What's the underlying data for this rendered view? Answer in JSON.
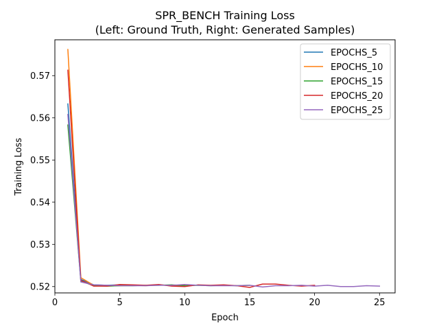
{
  "chart_data": {
    "type": "line",
    "title": "SPR_BENCH Training Loss",
    "subtitle": "(Left: Ground Truth, Right: Generated Samples)",
    "xlabel": "Epoch",
    "ylabel": "Training Loss",
    "xlim": [
      0.0,
      26.2
    ],
    "ylim": [
      0.5185,
      0.5785
    ],
    "xticks": [
      0,
      5,
      10,
      15,
      20,
      25
    ],
    "yticks": [
      0.52,
      0.53,
      0.54,
      0.55,
      0.56,
      0.57
    ],
    "grid": false,
    "legend_position": "top-right",
    "series": [
      {
        "name": "EPOCHS_5",
        "color": "#1f77b4",
        "x": [
          1,
          2,
          3,
          4,
          5
        ],
        "y": [
          0.5633,
          0.5217,
          0.5204,
          0.5203,
          0.5204
        ]
      },
      {
        "name": "EPOCHS_10",
        "color": "#ff7f0e",
        "x": [
          1,
          2,
          3,
          4,
          5,
          6,
          7,
          8,
          9,
          10
        ],
        "y": [
          0.5762,
          0.5221,
          0.5203,
          0.5201,
          0.5202,
          0.5203,
          0.5202,
          0.5204,
          0.5202,
          0.5203
        ]
      },
      {
        "name": "EPOCHS_15",
        "color": "#2ca02c",
        "x": [
          1,
          2,
          3,
          4,
          5,
          6,
          7,
          8,
          9,
          10,
          11,
          12,
          13,
          14,
          15
        ],
        "y": [
          0.5583,
          0.5213,
          0.5202,
          0.5201,
          0.5202,
          0.5202,
          0.5203,
          0.5203,
          0.5204,
          0.5202,
          0.5203,
          0.5202,
          0.5203,
          0.5202,
          0.5203
        ]
      },
      {
        "name": "EPOCHS_20",
        "color": "#d62728",
        "x": [
          1,
          2,
          3,
          4,
          5,
          6,
          7,
          8,
          9,
          10,
          11,
          12,
          13,
          14,
          15,
          16,
          17,
          18,
          19,
          20
        ],
        "y": [
          0.5713,
          0.5215,
          0.5201,
          0.5201,
          0.5205,
          0.5204,
          0.5203,
          0.5205,
          0.5201,
          0.52,
          0.5204,
          0.5203,
          0.5204,
          0.5202,
          0.5198,
          0.5206,
          0.5206,
          0.5203,
          0.5201,
          0.5203
        ]
      },
      {
        "name": "EPOCHS_25",
        "color": "#9467bd",
        "x": [
          1,
          2,
          3,
          4,
          5,
          6,
          7,
          8,
          9,
          10,
          11,
          12,
          13,
          14,
          15,
          16,
          17,
          18,
          19,
          20,
          21,
          22,
          23,
          24,
          25
        ],
        "y": [
          0.5608,
          0.5211,
          0.5204,
          0.5203,
          0.5202,
          0.5202,
          0.5202,
          0.5203,
          0.5203,
          0.5205,
          0.5203,
          0.5202,
          0.5202,
          0.5202,
          0.5203,
          0.5199,
          0.5202,
          0.5202,
          0.5203,
          0.5201,
          0.5203,
          0.52,
          0.52,
          0.5202,
          0.5201
        ]
      }
    ]
  }
}
